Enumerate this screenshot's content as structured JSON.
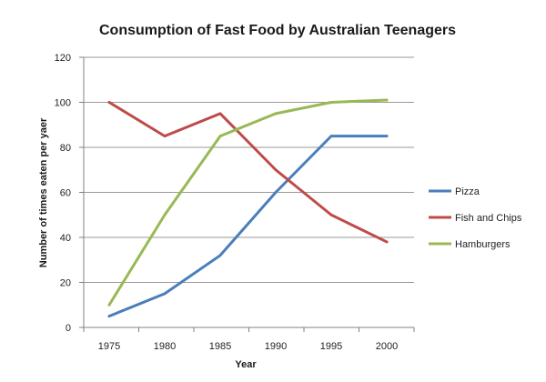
{
  "chart_data": {
    "type": "line",
    "title": "Consumption of Fast Food by Australian Teenagers",
    "xlabel": "Year",
    "ylabel": "Number of times eaten per yaer",
    "categories": [
      "1975",
      "1980",
      "1985",
      "1990",
      "1995",
      "2000"
    ],
    "ylim": [
      0,
      120
    ],
    "yticks": [
      0,
      20,
      40,
      60,
      80,
      100,
      120
    ],
    "grid": true,
    "legend_position": "right",
    "series": [
      {
        "name": "Pizza",
        "color": "#4a7ebb",
        "values": [
          5,
          15,
          32,
          60,
          85,
          85
        ]
      },
      {
        "name": "Fish and Chips",
        "color": "#be4b48",
        "values": [
          100,
          85,
          95,
          70,
          50,
          38
        ]
      },
      {
        "name": "Hamburgers",
        "color": "#98b954",
        "values": [
          10,
          50,
          85,
          95,
          100,
          101
        ]
      }
    ]
  }
}
